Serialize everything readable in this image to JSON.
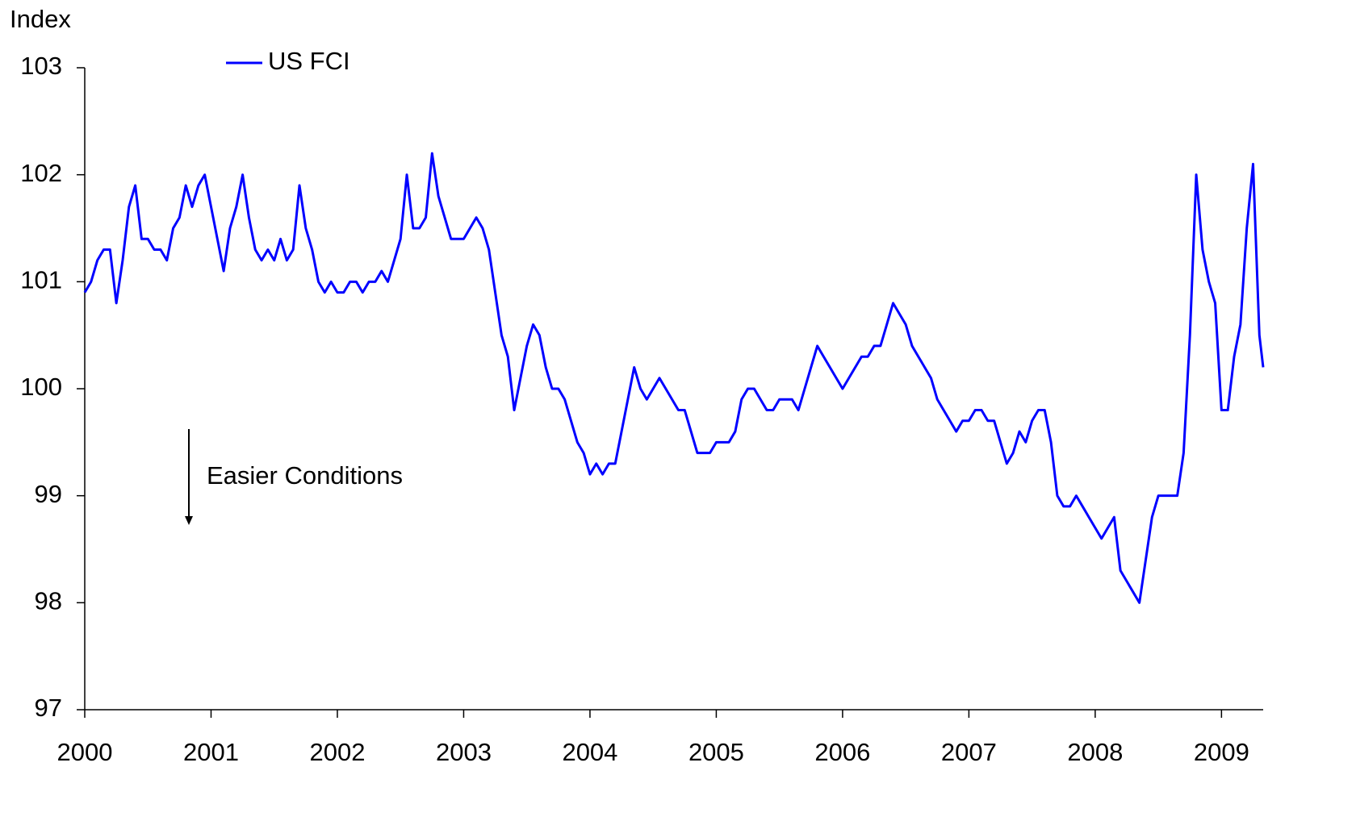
{
  "chart_data": {
    "type": "line",
    "y_label": "Index",
    "annotation": "Easier Conditions",
    "legend": "top-left",
    "grid": false,
    "xlim": [
      2000,
      2009.33
    ],
    "xticks": [
      2000,
      2001,
      2002,
      2003,
      2004,
      2005,
      2006,
      2007,
      2008,
      2009
    ],
    "ylim": [
      97,
      103
    ],
    "yticks": [
      97,
      98,
      99,
      100,
      101,
      102,
      103
    ],
    "x": [
      2000,
      2000.05,
      2000.1,
      2000.15,
      2000.2,
      2000.25,
      2000.3,
      2000.35,
      2000.4,
      2000.45,
      2000.5,
      2000.55,
      2000.6,
      2000.65,
      2000.7,
      2000.75,
      2000.8,
      2000.85,
      2000.9,
      2000.95,
      2001,
      2001.05,
      2001.1,
      2001.15,
      2001.2,
      2001.25,
      2001.3,
      2001.35,
      2001.4,
      2001.45,
      2001.5,
      2001.55,
      2001.6,
      2001.65,
      2001.7,
      2001.75,
      2001.8,
      2001.85,
      2001.9,
      2001.95,
      2002,
      2002.05,
      2002.1,
      2002.15,
      2002.2,
      2002.25,
      2002.3,
      2002.35,
      2002.4,
      2002.45,
      2002.5,
      2002.55,
      2002.6,
      2002.65,
      2002.7,
      2002.75,
      2002.8,
      2002.85,
      2002.9,
      2002.95,
      2003,
      2003.05,
      2003.1,
      2003.15,
      2003.2,
      2003.25,
      2003.3,
      2003.35,
      2003.4,
      2003.45,
      2003.5,
      2003.55,
      2003.6,
      2003.65,
      2003.7,
      2003.75,
      2003.8,
      2003.85,
      2003.9,
      2003.95,
      2004,
      2004.05,
      2004.1,
      2004.15,
      2004.2,
      2004.25,
      2004.3,
      2004.35,
      2004.4,
      2004.45,
      2004.5,
      2004.55,
      2004.6,
      2004.65,
      2004.7,
      2004.75,
      2004.8,
      2004.85,
      2004.9,
      2004.95,
      2005,
      2005.05,
      2005.1,
      2005.15,
      2005.2,
      2005.25,
      2005.3,
      2005.35,
      2005.4,
      2005.45,
      2005.5,
      2005.55,
      2005.6,
      2005.65,
      2005.7,
      2005.75,
      2005.8,
      2005.85,
      2005.9,
      2005.95,
      2006,
      2006.05,
      2006.1,
      2006.15,
      2006.2,
      2006.25,
      2006.3,
      2006.35,
      2006.4,
      2006.45,
      2006.5,
      2006.55,
      2006.6,
      2006.65,
      2006.7,
      2006.75,
      2006.8,
      2006.85,
      2006.9,
      2006.95,
      2007,
      2007.05,
      2007.1,
      2007.15,
      2007.2,
      2007.25,
      2007.3,
      2007.35,
      2007.4,
      2007.45,
      2007.5,
      2007.55,
      2007.6,
      2007.65,
      2007.7,
      2007.75,
      2007.8,
      2007.85,
      2007.9,
      2007.95,
      2008,
      2008.05,
      2008.1,
      2008.15,
      2008.2,
      2008.25,
      2008.3,
      2008.35,
      2008.4,
      2008.45,
      2008.5,
      2008.55,
      2008.6,
      2008.65,
      2008.7,
      2008.75,
      2008.8,
      2008.85,
      2008.9,
      2008.95,
      2009,
      2009.05,
      2009.1,
      2009.15,
      2009.2,
      2009.25,
      2009.3,
      2009.33
    ],
    "series": [
      {
        "name": "US FCI",
        "color": "#0000ff",
        "values": [
          100.9,
          101.0,
          101.2,
          101.3,
          101.3,
          100.8,
          101.2,
          101.7,
          101.9,
          101.4,
          101.4,
          101.3,
          101.3,
          101.2,
          101.5,
          101.6,
          101.9,
          101.7,
          101.9,
          102.0,
          101.7,
          101.4,
          101.1,
          101.5,
          101.7,
          102.0,
          101.6,
          101.3,
          101.2,
          101.3,
          101.2,
          101.4,
          101.2,
          101.3,
          101.9,
          101.5,
          101.3,
          101.0,
          100.9,
          101.0,
          100.9,
          100.9,
          101.0,
          101.0,
          100.9,
          101.0,
          101.0,
          101.1,
          101.0,
          101.2,
          101.4,
          102.0,
          101.5,
          101.5,
          101.6,
          102.2,
          101.8,
          101.6,
          101.4,
          101.4,
          101.4,
          101.5,
          101.6,
          101.5,
          101.3,
          100.9,
          100.5,
          100.3,
          99.8,
          100.1,
          100.4,
          100.6,
          100.5,
          100.2,
          100.0,
          100.0,
          99.9,
          99.7,
          99.5,
          99.4,
          99.2,
          99.3,
          99.2,
          99.3,
          99.3,
          99.6,
          99.9,
          100.2,
          100.0,
          99.9,
          100.0,
          100.1,
          100.0,
          99.9,
          99.8,
          99.8,
          99.6,
          99.4,
          99.4,
          99.4,
          99.5,
          99.5,
          99.5,
          99.6,
          99.9,
          100.0,
          100.0,
          99.9,
          99.8,
          99.8,
          99.9,
          99.9,
          99.9,
          99.8,
          100.0,
          100.2,
          100.4,
          100.3,
          100.2,
          100.1,
          100.0,
          100.1,
          100.2,
          100.3,
          100.3,
          100.4,
          100.4,
          100.6,
          100.8,
          100.7,
          100.6,
          100.4,
          100.3,
          100.2,
          100.1,
          99.9,
          99.8,
          99.7,
          99.6,
          99.7,
          99.7,
          99.8,
          99.8,
          99.7,
          99.7,
          99.5,
          99.3,
          99.4,
          99.6,
          99.5,
          99.7,
          99.8,
          99.8,
          99.5,
          99.0,
          98.9,
          98.9,
          99.0,
          98.9,
          98.8,
          98.7,
          98.6,
          98.7,
          98.8,
          98.3,
          98.2,
          98.1,
          98.0,
          98.4,
          98.8,
          99.0,
          99.0,
          99.0,
          99.0,
          99.4,
          100.5,
          102.0,
          101.3,
          101.0,
          100.8,
          99.8,
          99.8,
          100.3,
          100.6,
          101.5,
          102.1,
          100.5,
          100.2
        ]
      }
    ]
  }
}
